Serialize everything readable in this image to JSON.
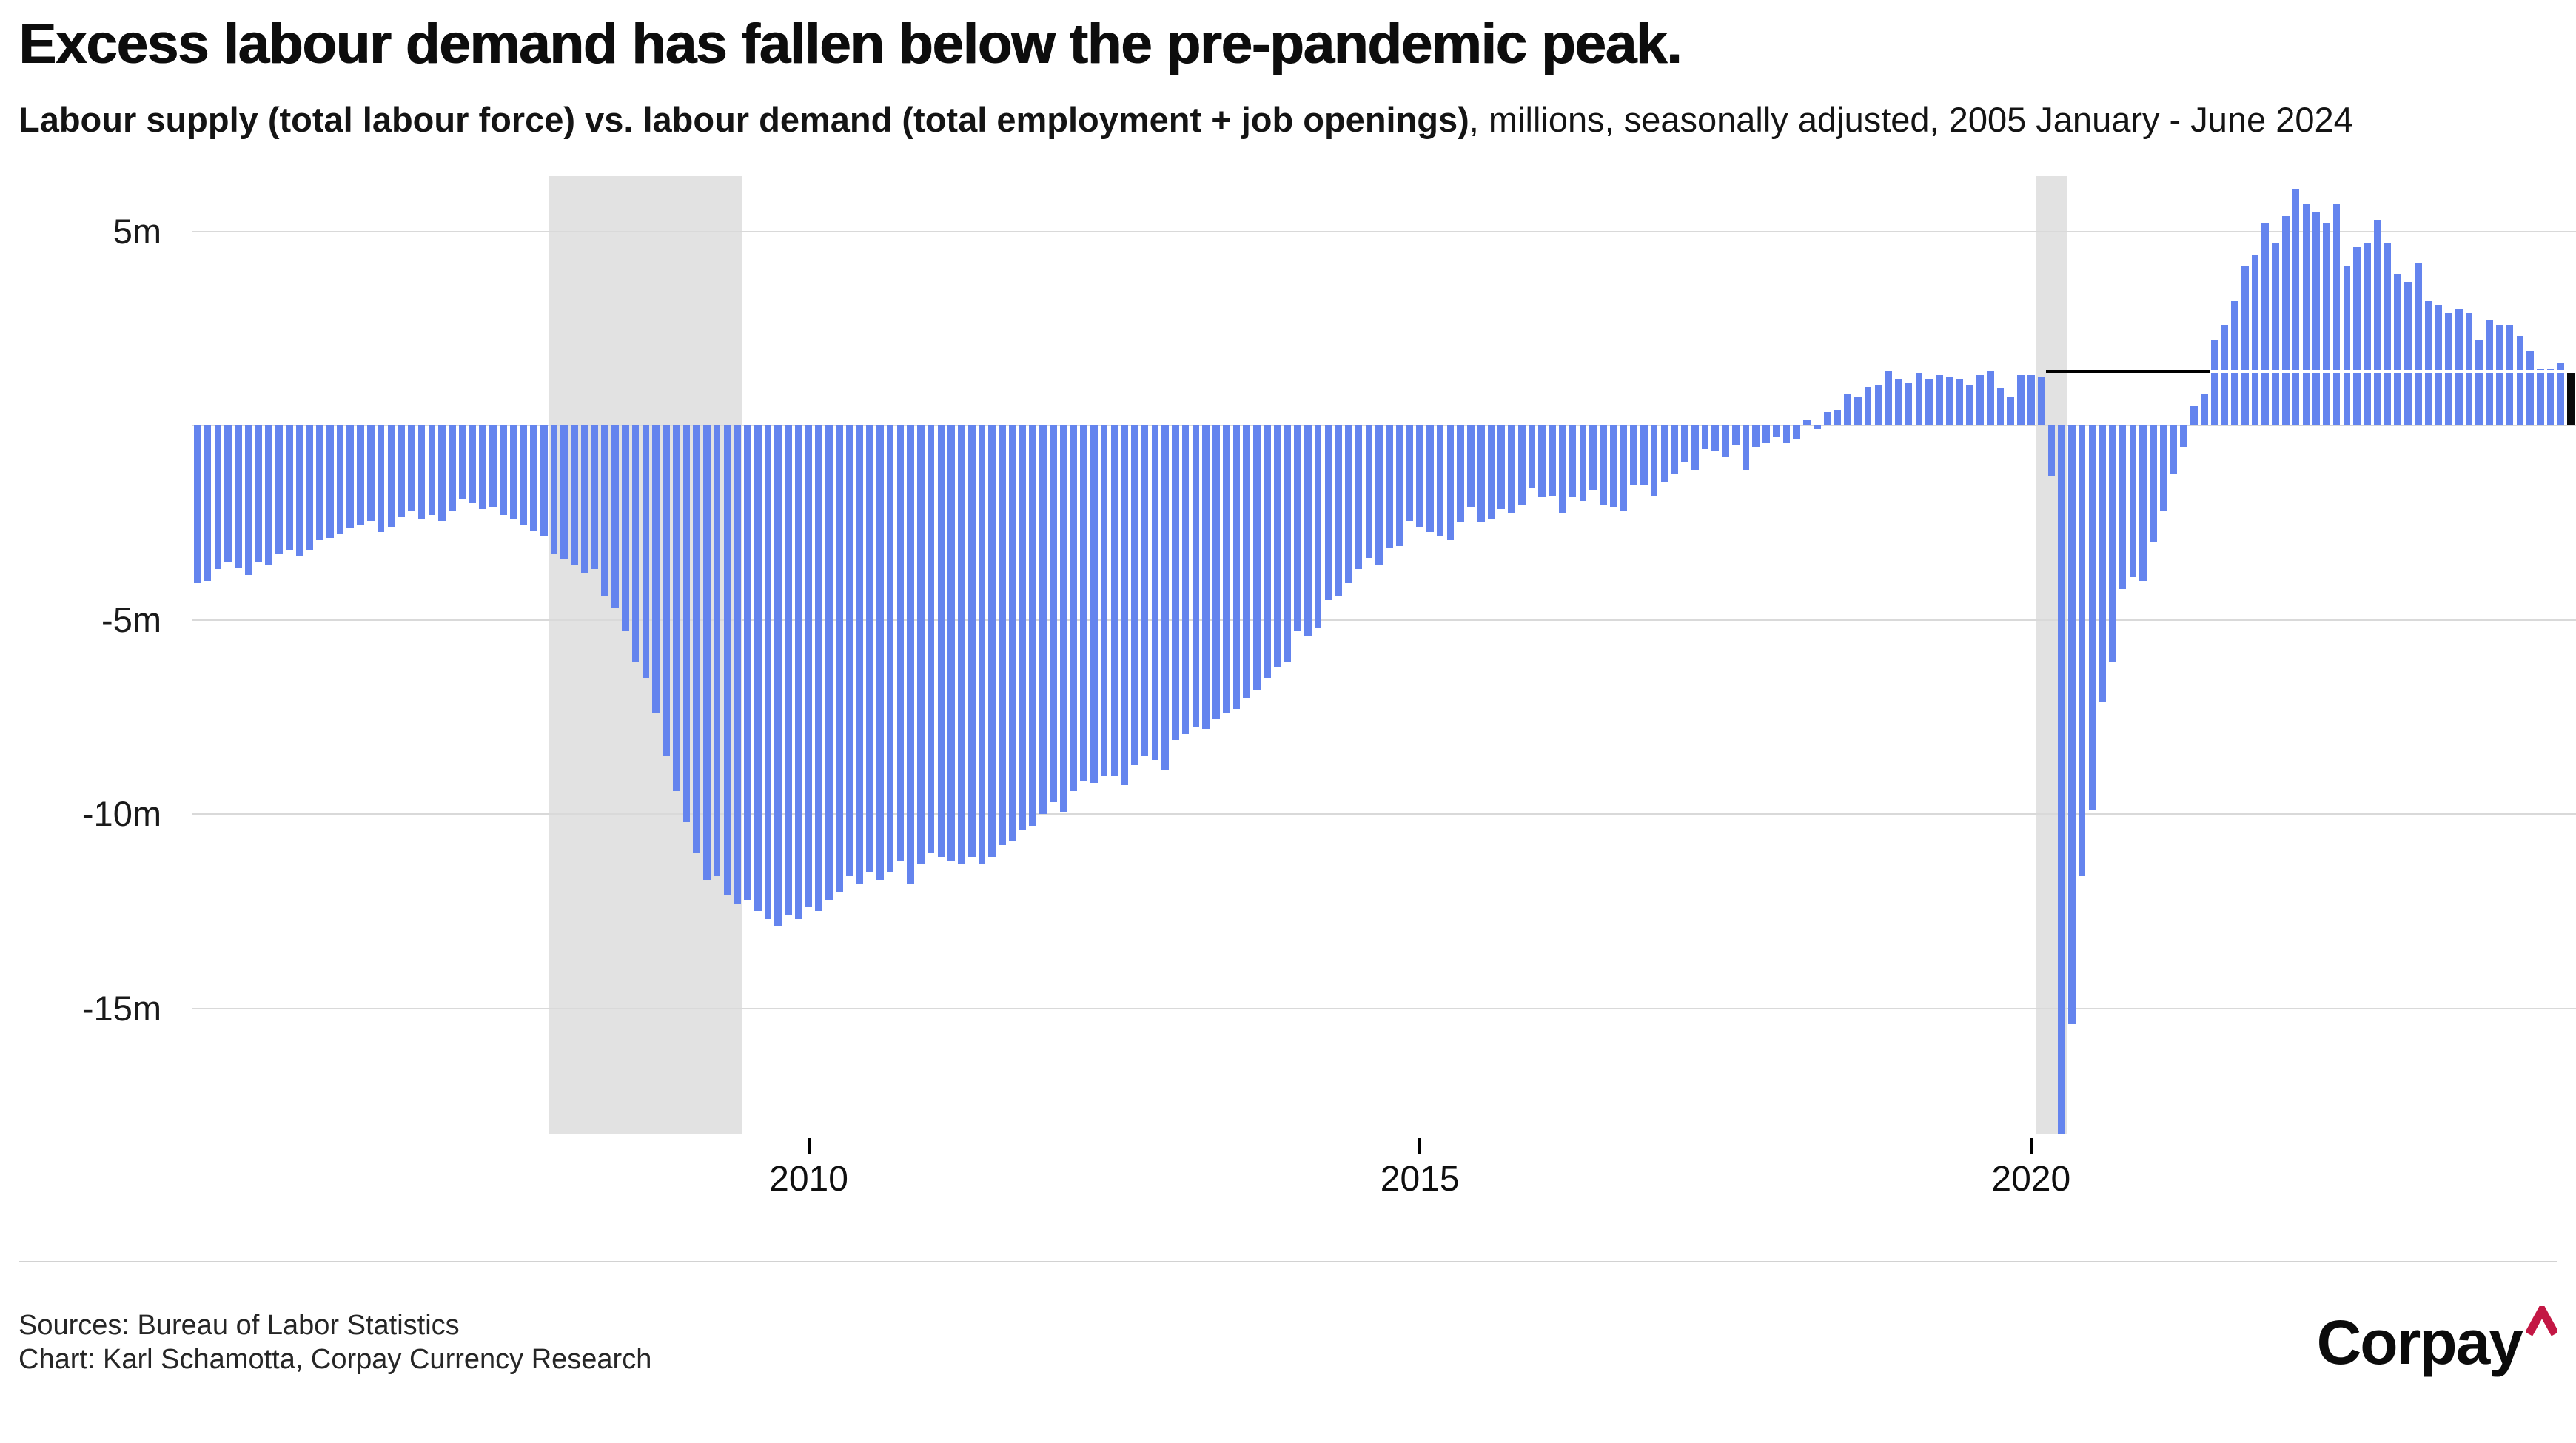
{
  "title": "Excess labour demand has fallen below the pre-pandemic peak.",
  "subtitle": {
    "bold": "Labour supply (total labour force) vs. labour demand (total employment + job openings)",
    "regular": ", millions, seasonally adjusted, 2005 January - June 2024"
  },
  "footer": {
    "sources": "Sources: Bureau of Labor Statistics",
    "credit": "Chart: Karl Schamotta, Corpay Currency Research"
  },
  "logo": {
    "text": "Corpay",
    "caret_color": "#C31744"
  },
  "colors": {
    "bar": "#6484EE",
    "last_bar": "#0a0a0a",
    "recession_band": "#e2e2e2",
    "gridline": "#d9d9d9",
    "reference_black": "#000000",
    "reference_white": "#ffffff"
  },
  "chart_data": {
    "type": "bar",
    "title": "Excess labour demand has fallen below the pre-pandemic peak.",
    "xlabel": "",
    "ylabel": "millions",
    "unit": "millions",
    "frequency": "monthly",
    "start": "2005-01",
    "end": "2024-06",
    "ylim": [
      -18.25,
      6.42
    ],
    "grid": true,
    "legend": "none",
    "y_ticks": [
      {
        "v": 5,
        "label": "5m"
      },
      {
        "v": 0,
        "label": ""
      },
      {
        "v": -5,
        "label": "-5m"
      },
      {
        "v": -10,
        "label": "-10m"
      },
      {
        "v": -15,
        "label": "-15m"
      }
    ],
    "x_ticks": [
      {
        "index": 60,
        "label": "2010"
      },
      {
        "index": 120,
        "label": "2015"
      },
      {
        "index": 180,
        "label": "2020"
      }
    ],
    "recessions": [
      {
        "from_index": 35,
        "to_index": 54,
        "note": "Dec 2007 - Jun 2009"
      },
      {
        "from_index": 181,
        "to_index": 184,
        "note": "Feb 2020 - Apr 2020"
      }
    ],
    "reference_line": {
      "value": 1.4,
      "label": "pre-pandemic peak",
      "black_from_index": 182,
      "white_from_index": 198
    },
    "last_point_highlighted": true,
    "values": [
      -4.05,
      -4.0,
      -3.7,
      -3.5,
      -3.65,
      -3.85,
      -3.5,
      -3.6,
      -3.3,
      -3.2,
      -3.35,
      -3.2,
      -2.95,
      -2.9,
      -2.8,
      -2.65,
      -2.55,
      -2.45,
      -2.75,
      -2.6,
      -2.35,
      -2.2,
      -2.4,
      -2.3,
      -2.45,
      -2.2,
      -1.9,
      -2.0,
      -2.15,
      -2.1,
      -2.3,
      -2.4,
      -2.55,
      -2.7,
      -2.85,
      -3.3,
      -3.45,
      -3.6,
      -3.8,
      -3.7,
      -4.4,
      -4.7,
      -5.3,
      -6.1,
      -6.5,
      -7.4,
      -8.5,
      -9.4,
      -10.2,
      -11.0,
      -11.7,
      -11.6,
      -12.1,
      -12.3,
      -12.2,
      -12.5,
      -12.7,
      -12.9,
      -12.6,
      -12.7,
      -12.4,
      -12.5,
      -12.2,
      -12.0,
      -11.6,
      -11.8,
      -11.5,
      -11.7,
      -11.5,
      -11.2,
      -11.8,
      -11.3,
      -11.0,
      -11.1,
      -11.2,
      -11.3,
      -11.1,
      -11.3,
      -11.1,
      -10.8,
      -10.7,
      -10.4,
      -10.3,
      -10.0,
      -9.7,
      -9.95,
      -9.4,
      -9.15,
      -9.2,
      -9.0,
      -9.0,
      -9.25,
      -8.75,
      -8.5,
      -8.6,
      -8.85,
      -8.1,
      -7.95,
      -7.75,
      -7.8,
      -7.55,
      -7.4,
      -7.3,
      -7.0,
      -6.8,
      -6.5,
      -6.2,
      -6.1,
      -5.3,
      -5.4,
      -5.2,
      -4.5,
      -4.4,
      -4.05,
      -3.7,
      -3.4,
      -3.6,
      -3.15,
      -3.1,
      -2.45,
      -2.6,
      -2.75,
      -2.85,
      -2.95,
      -2.5,
      -2.1,
      -2.5,
      -2.4,
      -2.15,
      -2.25,
      -2.05,
      -1.6,
      -1.85,
      -1.8,
      -2.25,
      -1.85,
      -1.95,
      -1.65,
      -2.05,
      -2.1,
      -2.2,
      -1.55,
      -1.55,
      -1.8,
      -1.45,
      -1.25,
      -0.95,
      -1.15,
      -0.6,
      -0.65,
      -0.8,
      -0.5,
      -1.15,
      -0.55,
      -0.45,
      -0.3,
      -0.45,
      -0.35,
      0.15,
      -0.1,
      0.35,
      0.4,
      0.8,
      0.75,
      1.0,
      1.05,
      1.4,
      1.2,
      1.1,
      1.35,
      1.2,
      1.3,
      1.25,
      1.2,
      1.05,
      1.3,
      1.4,
      0.95,
      0.75,
      1.3,
      1.3,
      1.25,
      -1.3,
      -18.25,
      -15.4,
      -11.6,
      -9.9,
      -7.1,
      -6.1,
      -4.2,
      -3.9,
      -4.0,
      -3.0,
      -2.2,
      -1.25,
      -0.55,
      0.5,
      0.8,
      2.2,
      2.6,
      3.2,
      4.1,
      4.4,
      5.2,
      4.7,
      5.4,
      6.1,
      5.7,
      5.5,
      5.2,
      5.7,
      4.1,
      4.6,
      4.7,
      5.3,
      4.7,
      3.9,
      3.7,
      4.2,
      3.2,
      3.1,
      2.9,
      3.0,
      2.9,
      2.2,
      2.7,
      2.6,
      2.6,
      2.3,
      1.9,
      1.45,
      1.45,
      1.6,
      1.35
    ]
  }
}
